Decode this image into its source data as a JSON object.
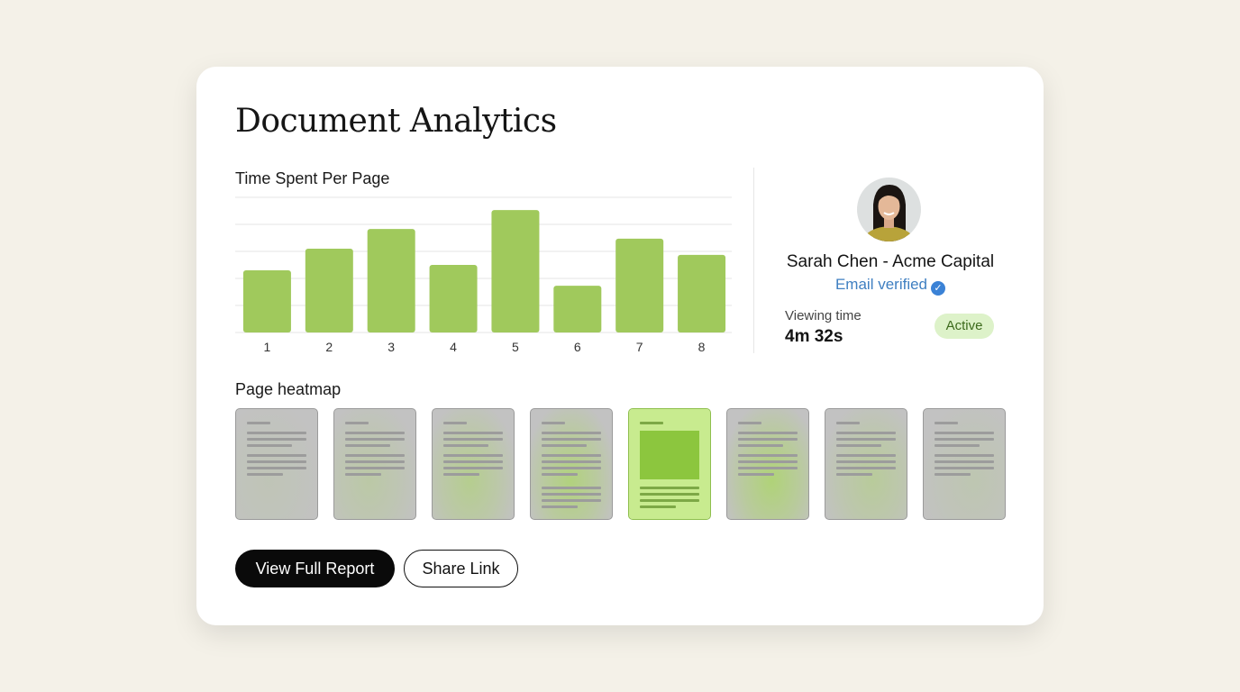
{
  "title": "Document Analytics",
  "chart_data": {
    "type": "bar",
    "title": "Time Spent Per Page",
    "categories": [
      "1",
      "2",
      "3",
      "4",
      "5",
      "6",
      "7",
      "8"
    ],
    "values": [
      2.3,
      3.1,
      3.83,
      2.5,
      4.53,
      1.73,
      3.47,
      2.87
    ],
    "ylim": [
      0,
      5
    ],
    "grid": true,
    "color": "#a0c95c"
  },
  "viewer": {
    "name": "Sarah Chen - Acme Capital",
    "verified_label": "Email verified",
    "viewing_time_label": "Viewing time",
    "viewing_time": "4m 32s",
    "status": "Active"
  },
  "heatmap": {
    "title": "Page heatmap",
    "intensity": [
      0.1,
      0.25,
      0.45,
      0.6,
      1.0,
      0.65,
      0.35,
      0.15
    ],
    "color": "#a6dc50"
  },
  "actions": {
    "primary": "View Full Report",
    "secondary": "Share Link"
  }
}
